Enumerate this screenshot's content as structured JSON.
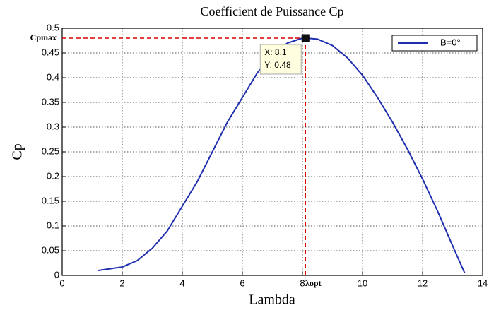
{
  "chart_data": {
    "type": "line",
    "title": "Coefficient de Puissance Cp",
    "x_label": "Lambda",
    "y_label": "Cp",
    "xlim": [
      0,
      14
    ],
    "ylim": [
      0,
      0.5
    ],
    "xticks": [
      0,
      2,
      4,
      6,
      8,
      10,
      12,
      14
    ],
    "yticks": [
      0,
      0.05,
      0.1,
      0.15,
      0.2,
      0.25,
      0.3,
      0.35,
      0.4,
      0.45,
      0.5
    ],
    "grid": true,
    "legend": "top-right",
    "x": [
      1.2,
      2,
      2.5,
      3,
      3.5,
      4,
      4.5,
      5,
      5.5,
      6,
      6.5,
      7,
      7.5,
      8,
      8.1,
      8.5,
      9,
      9.5,
      10,
      10.5,
      11,
      11.5,
      12,
      12.5,
      13,
      13.4
    ],
    "series": [
      {
        "name": "B=0°",
        "color": "#1f2fb0",
        "values": [
          0.01,
          0.017,
          0.03,
          0.055,
          0.09,
          0.14,
          0.19,
          0.25,
          0.31,
          0.36,
          0.41,
          0.445,
          0.47,
          0.48,
          0.48,
          0.478,
          0.465,
          0.44,
          0.405,
          0.36,
          0.31,
          0.255,
          0.195,
          0.13,
          0.06,
          0.005
        ]
      }
    ],
    "datatip": {
      "x": 8.1,
      "y": 0.48,
      "x_label": "X: 8.1",
      "y_label": "Y: 0.48"
    },
    "annotations": {
      "y_marker": "Cpmax",
      "x_marker": "λopt"
    }
  }
}
